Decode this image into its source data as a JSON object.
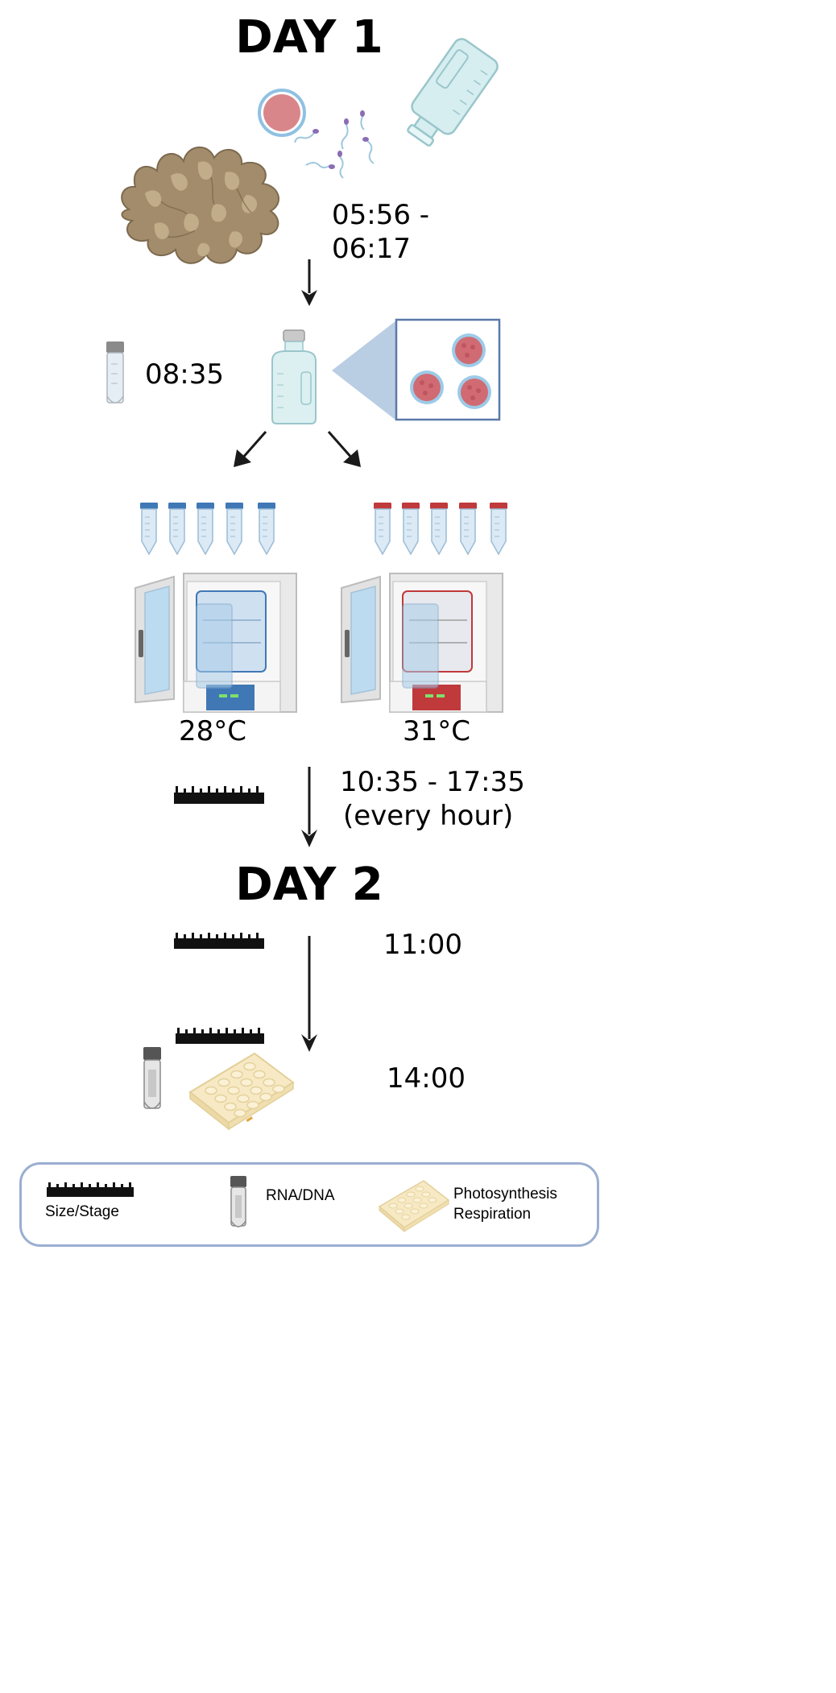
{
  "day1": {
    "title": "DAY 1",
    "spawn_time": [
      "05:56 -",
      "06:17"
    ],
    "sample_time": "08:35",
    "temperatures": [
      "28°C",
      "31°C"
    ],
    "measure_time": [
      "10:35 - 17:35",
      "(every hour)"
    ]
  },
  "day2": {
    "title": "DAY 2",
    "measure_time": "11:00",
    "final_time": "14:00"
  },
  "legend": {
    "size_stage": "Size/Stage",
    "rna_dna": "RNA/DNA",
    "photosynthesis": "Photosynthesis",
    "respiration": "Respiration"
  },
  "colors": {
    "cool_treatment": "#3f78b5",
    "warm_treatment": "#c0393b",
    "coral": "#a08866",
    "tube_body": "#dbeaf5",
    "legend_border": "#9aaed1"
  }
}
